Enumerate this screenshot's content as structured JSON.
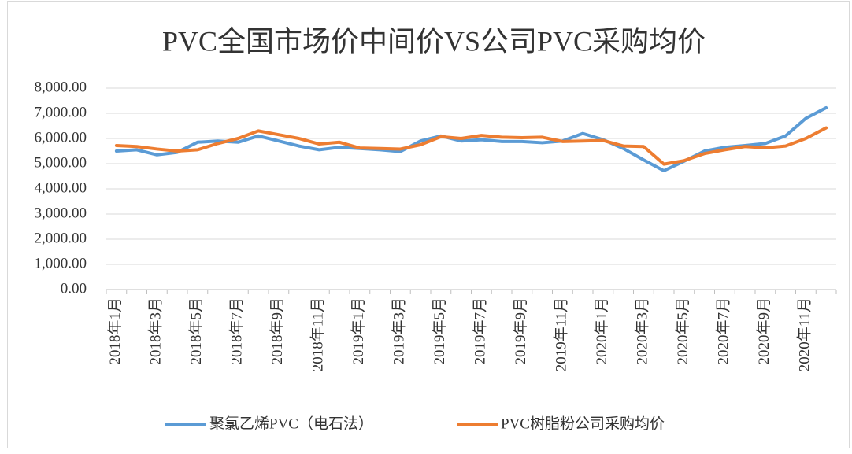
{
  "chart_data": {
    "type": "line",
    "title": "PVC全国市场价中间价VS公司PVC采购均价",
    "categories": [
      "2018年1月",
      null,
      "2018年3月",
      null,
      "2018年5月",
      null,
      "2018年7月",
      null,
      "2018年9月",
      null,
      "2018年11月",
      null,
      "2019年1月",
      null,
      "2019年3月",
      null,
      "2019年5月",
      null,
      "2019年7月",
      null,
      "2019年9月",
      null,
      "2019年11月",
      null,
      "2020年1月",
      null,
      "2020年3月",
      null,
      "2020年5月",
      null,
      "2020年7月",
      null,
      "2020年9月",
      null,
      "2020年11月",
      null
    ],
    "series": [
      {
        "name": "聚氯乙烯PVC（电石法）",
        "color": "#5b9bd5",
        "values": [
          5500,
          5550,
          5350,
          5450,
          5850,
          5900,
          5850,
          6100,
          5900,
          5700,
          5550,
          5650,
          5600,
          5550,
          5480,
          5900,
          6100,
          5900,
          5950,
          5880,
          5880,
          5830,
          5900,
          6200,
          5950,
          5600,
          5150,
          4720,
          5100,
          5500,
          5650,
          5720,
          5800,
          6100,
          6800,
          7220
        ]
      },
      {
        "name": "PVC树脂粉公司采购均价",
        "color": "#ed7d31",
        "values": [
          5720,
          5680,
          5580,
          5500,
          5550,
          5800,
          6000,
          6300,
          6150,
          6000,
          5780,
          5850,
          5620,
          5600,
          5580,
          5750,
          6070,
          6000,
          6120,
          6050,
          6030,
          6050,
          5880,
          5900,
          5920,
          5700,
          5680,
          4980,
          5120,
          5400,
          5550,
          5680,
          5630,
          5700,
          6000,
          6420
        ]
      }
    ],
    "ylim": [
      0,
      8000
    ],
    "yticks": [
      {
        "value": 0,
        "label": "0.00"
      },
      {
        "value": 1000,
        "label": "1,000.00"
      },
      {
        "value": 2000,
        "label": "2,000.00"
      },
      {
        "value": 3000,
        "label": "3,000.00"
      },
      {
        "value": 4000,
        "label": "4,000.00"
      },
      {
        "value": 5000,
        "label": "5,000.00"
      },
      {
        "value": 6000,
        "label": "6,000.00"
      },
      {
        "value": 7000,
        "label": "7,000.00"
      },
      {
        "value": 8000,
        "label": "8,000.00"
      }
    ],
    "grid": true,
    "legend": "bottom"
  }
}
